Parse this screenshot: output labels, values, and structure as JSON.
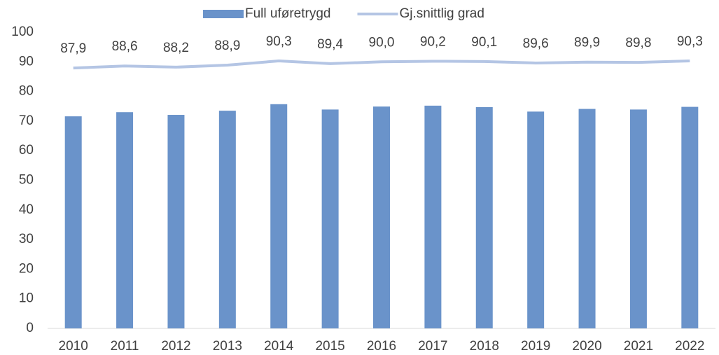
{
  "chart_data": {
    "type": "combo",
    "categories": [
      "2010",
      "2011",
      "2012",
      "2013",
      "2014",
      "2015",
      "2016",
      "2017",
      "2018",
      "2019",
      "2020",
      "2021",
      "2022"
    ],
    "series": [
      {
        "name": "Full uføretrygd",
        "type": "bar",
        "color": "#6a93ca",
        "values": [
          71.6,
          73.0,
          72.1,
          73.5,
          75.7,
          73.9,
          74.9,
          75.2,
          74.7,
          73.2,
          74.1,
          73.9,
          74.8
        ]
      },
      {
        "name": "Gj.snittlig grad",
        "type": "line",
        "color": "#b4c5e4",
        "values": [
          87.9,
          88.6,
          88.2,
          88.9,
          90.3,
          89.4,
          90.0,
          90.2,
          90.1,
          89.6,
          89.9,
          89.8,
          90.3
        ],
        "value_labels": [
          "87,9",
          "88,6",
          "88,2",
          "88,9",
          "90,3",
          "89,4",
          "90,0",
          "90,2",
          "90,1",
          "89,6",
          "89,9",
          "89,8",
          "90,3"
        ]
      }
    ],
    "ylim": [
      0,
      100
    ],
    "yticks": [
      0,
      10,
      20,
      30,
      40,
      50,
      60,
      70,
      80,
      90,
      100
    ],
    "grid": false,
    "legend": "top"
  }
}
